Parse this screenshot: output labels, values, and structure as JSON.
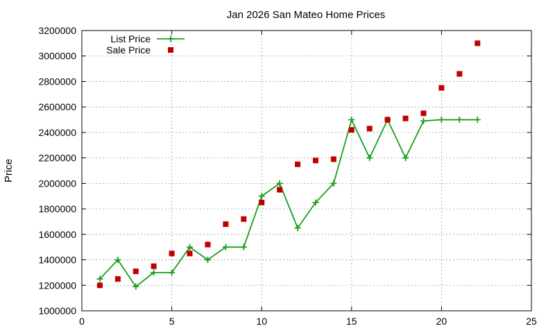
{
  "chart_data": {
    "type": "line",
    "title": "Jan 2026 San Mateo Home Prices",
    "xlabel": "",
    "ylabel": "Price",
    "xlim": [
      0,
      25
    ],
    "ylim": [
      1000000,
      3200000
    ],
    "x_ticks": [
      "0",
      "5",
      "10",
      "15",
      "20",
      "25"
    ],
    "y_ticks": [
      "1000000",
      "1200000",
      "1400000",
      "1600000",
      "1800000",
      "2000000",
      "2200000",
      "2400000",
      "2600000",
      "2800000",
      "3000000",
      "3200000"
    ],
    "grid": true,
    "legend_position": "top-left",
    "series": [
      {
        "name": "List Price",
        "style": "linespoints",
        "marker": "plus",
        "color": "#1a9e1a",
        "x": [
          1,
          2,
          3,
          4,
          5,
          6,
          7,
          8,
          9,
          10,
          11,
          12,
          13,
          14,
          15,
          16,
          17,
          18,
          19,
          20,
          21,
          22
        ],
        "y": [
          1250000,
          1400000,
          1190000,
          1300000,
          1300000,
          1500000,
          1400000,
          1500000,
          1500000,
          1900000,
          2000000,
          1650000,
          1850000,
          2000000,
          2500000,
          2200000,
          2500000,
          2200000,
          2490000,
          2500000,
          2500000,
          2500000
        ]
      },
      {
        "name": "Sale Price",
        "style": "points",
        "marker": "square",
        "color": "#c00000",
        "x": [
          1,
          2,
          3,
          4,
          5,
          6,
          7,
          8,
          9,
          10,
          11,
          12,
          13,
          14,
          15,
          16,
          17,
          18,
          19,
          20,
          21,
          22
        ],
        "y": [
          1200000,
          1250000,
          1310000,
          1350000,
          1450000,
          1450000,
          1520000,
          1680000,
          1720000,
          1850000,
          1950000,
          2150000,
          2180000,
          2190000,
          2420000,
          2430000,
          2500000,
          2510000,
          2550000,
          2750000,
          2860000,
          3100000
        ]
      }
    ]
  }
}
